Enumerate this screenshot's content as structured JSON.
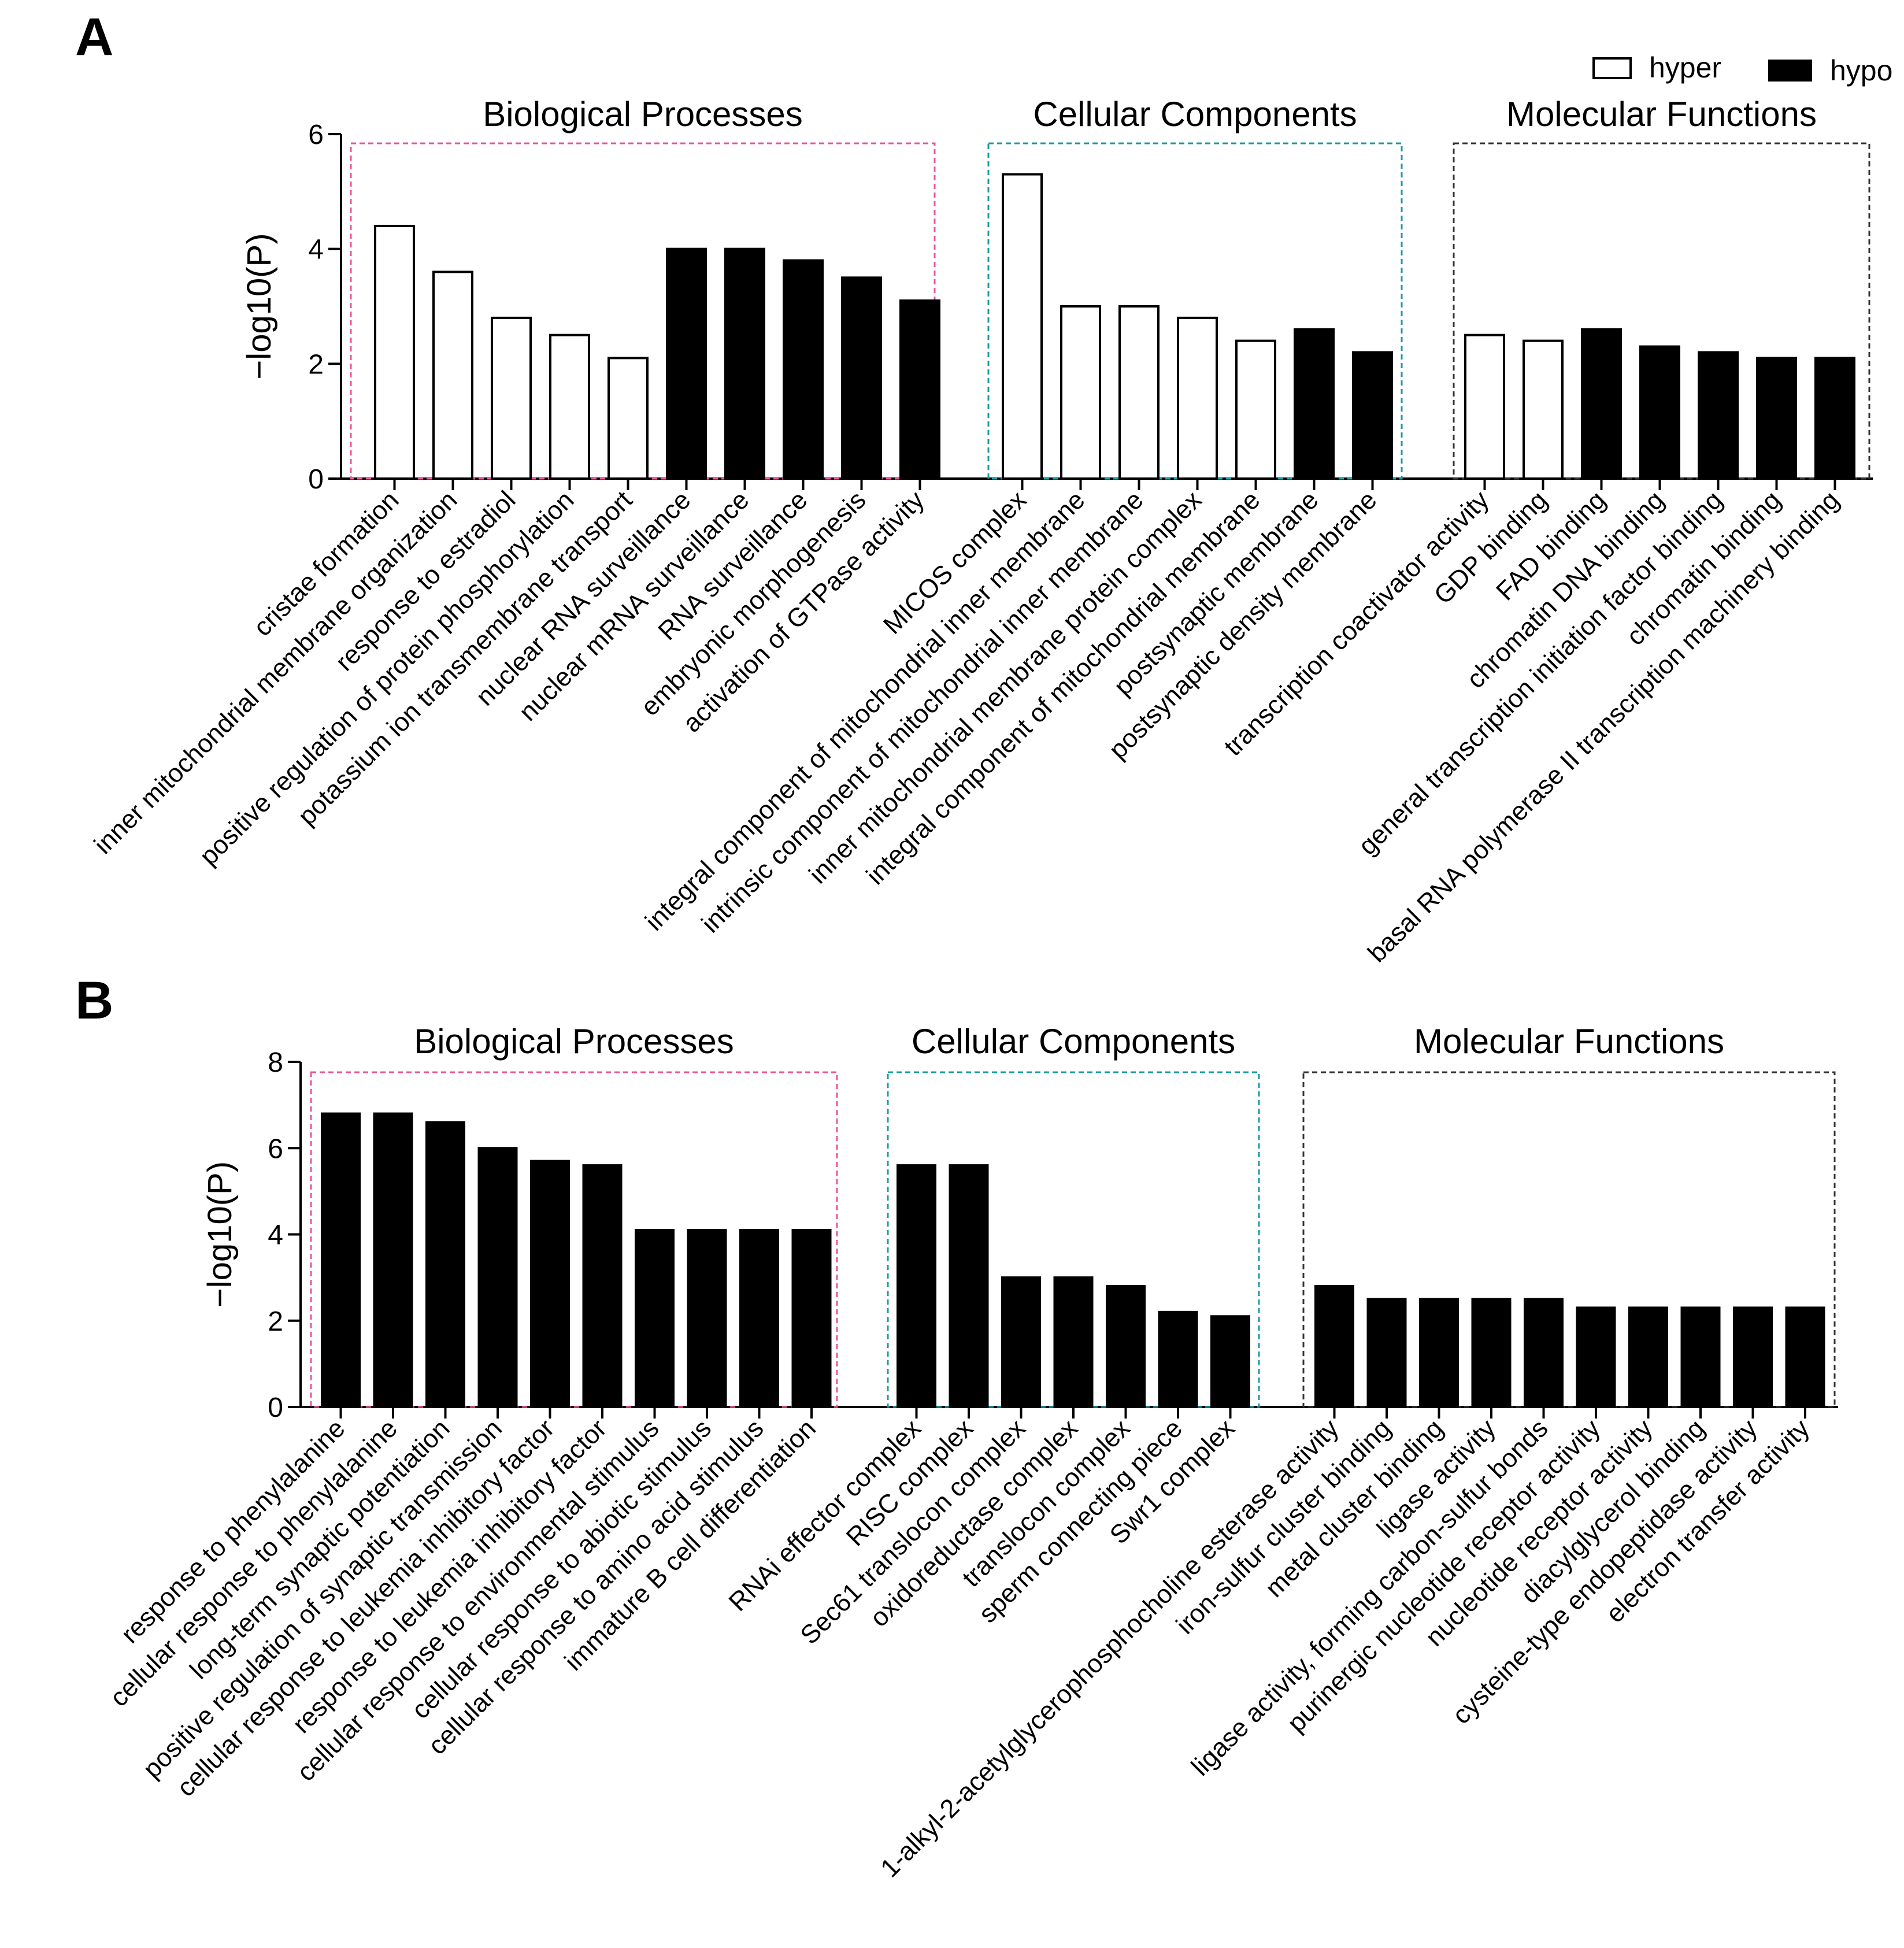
{
  "legend": {
    "hyper_label": "hyper",
    "hypo_label": "hypo",
    "hyper_color": "#ffffff",
    "hypo_color": "#000000"
  },
  "chart_data": [
    {
      "panel": "A",
      "type": "bar",
      "ylabel": "−log10(P)",
      "ylim": [
        0,
        6
      ],
      "yticks": [
        0,
        2,
        4,
        6
      ],
      "groups": [
        {
          "title": "Biological Processes",
          "box_color": "#e8559a",
          "categories": [
            "cristae formation",
            "inner mitochondrial membrane organization",
            "response to estradiol",
            "positive regulation of protein phosphorylation",
            "potassium ion transmembrane transport",
            "nuclear RNA surveillance",
            "nuclear mRNA surveillance",
            "RNA surveillance",
            "embryonic morphogenesis",
            "activation of GTPase activity"
          ],
          "values": [
            4.4,
            3.6,
            2.8,
            2.5,
            2.1,
            4.0,
            4.0,
            3.8,
            3.5,
            3.1
          ],
          "series": [
            "hyper",
            "hyper",
            "hyper",
            "hyper",
            "hyper",
            "hypo",
            "hypo",
            "hypo",
            "hypo",
            "hypo"
          ]
        },
        {
          "title": "Cellular Components",
          "box_color": "#1a9aa0",
          "categories": [
            "MICOS complex",
            "integral component of mitochondrial inner membrane",
            "intrinsic component of mitochondrial inner membrane",
            "inner mitochondrial membrane protein complex",
            "integral component of mitochondrial membrane",
            "postsynaptic membrane",
            "postsynaptic density membrane"
          ],
          "values": [
            5.3,
            3.0,
            3.0,
            2.8,
            2.4,
            2.6,
            2.2
          ],
          "series": [
            "hyper",
            "hyper",
            "hyper",
            "hyper",
            "hyper",
            "hypo",
            "hypo"
          ]
        },
        {
          "title": "Molecular Functions",
          "box_color": "#333333",
          "categories": [
            "transcription coactivator activity",
            "GDP binding",
            "FAD binding",
            "chromatin DNA binding",
            "general transcription initiation factor binding",
            "chromatin binding",
            "basal RNA polymerase II transcription machinery binding"
          ],
          "values": [
            2.5,
            2.4,
            2.6,
            2.3,
            2.2,
            2.1,
            2.1
          ],
          "series": [
            "hyper",
            "hyper",
            "hypo",
            "hypo",
            "hypo",
            "hypo",
            "hypo"
          ]
        }
      ]
    },
    {
      "panel": "B",
      "type": "bar",
      "ylabel": "−log10(P)",
      "ylim": [
        0,
        8
      ],
      "yticks": [
        0,
        2,
        4,
        6,
        8
      ],
      "groups": [
        {
          "title": "Biological Processes",
          "box_color": "#e8559a",
          "categories": [
            "response to phenylalanine",
            "cellular response to phenylalanine",
            "long-term synaptic potentiation",
            "positive regulation of synaptic transmission",
            "cellular response to leukemia inhibitory factor",
            "response to leukemia inhibitory factor",
            "cellular response to environmental stimulus",
            "cellular response to abiotic stimulus",
            "cellular response to amino acid stimulus",
            "immature B cell differentiation"
          ],
          "values": [
            6.8,
            6.8,
            6.6,
            6.0,
            5.7,
            5.6,
            4.1,
            4.1,
            4.1,
            4.1
          ],
          "series": [
            "hypo",
            "hypo",
            "hypo",
            "hypo",
            "hypo",
            "hypo",
            "hypo",
            "hypo",
            "hypo",
            "hypo"
          ]
        },
        {
          "title": "Cellular Components",
          "box_color": "#1a9aa0",
          "categories": [
            "RNAi effector complex",
            "RISC complex",
            "Sec61 translocon complex",
            "oxidoreductase complex",
            "translocon complex",
            "sperm connecting piece",
            "Swr1 complex"
          ],
          "values": [
            5.6,
            5.6,
            3.0,
            3.0,
            2.8,
            2.2,
            2.1
          ],
          "series": [
            "hypo",
            "hypo",
            "hypo",
            "hypo",
            "hypo",
            "hypo",
            "hypo"
          ]
        },
        {
          "title": "Molecular Functions",
          "box_color": "#333333",
          "categories": [
            "1-alkyl-2-acetylglycerophosphocholine esterase activity",
            "iron-sulfur cluster binding",
            "metal cluster binding",
            "ligase activity",
            "ligase activity, forming carbon-sulfur bonds",
            "purinergic nucleotide receptor activity",
            "nucleotide receptor activity",
            "diacylglycerol binding",
            "cysteine-type endopeptidase activity",
            "electron transfer activity"
          ],
          "values": [
            2.8,
            2.5,
            2.5,
            2.5,
            2.5,
            2.3,
            2.3,
            2.3,
            2.3,
            2.3
          ],
          "series": [
            "hypo",
            "hypo",
            "hypo",
            "hypo",
            "hypo",
            "hypo",
            "hypo",
            "hypo",
            "hypo",
            "hypo"
          ]
        }
      ]
    }
  ]
}
